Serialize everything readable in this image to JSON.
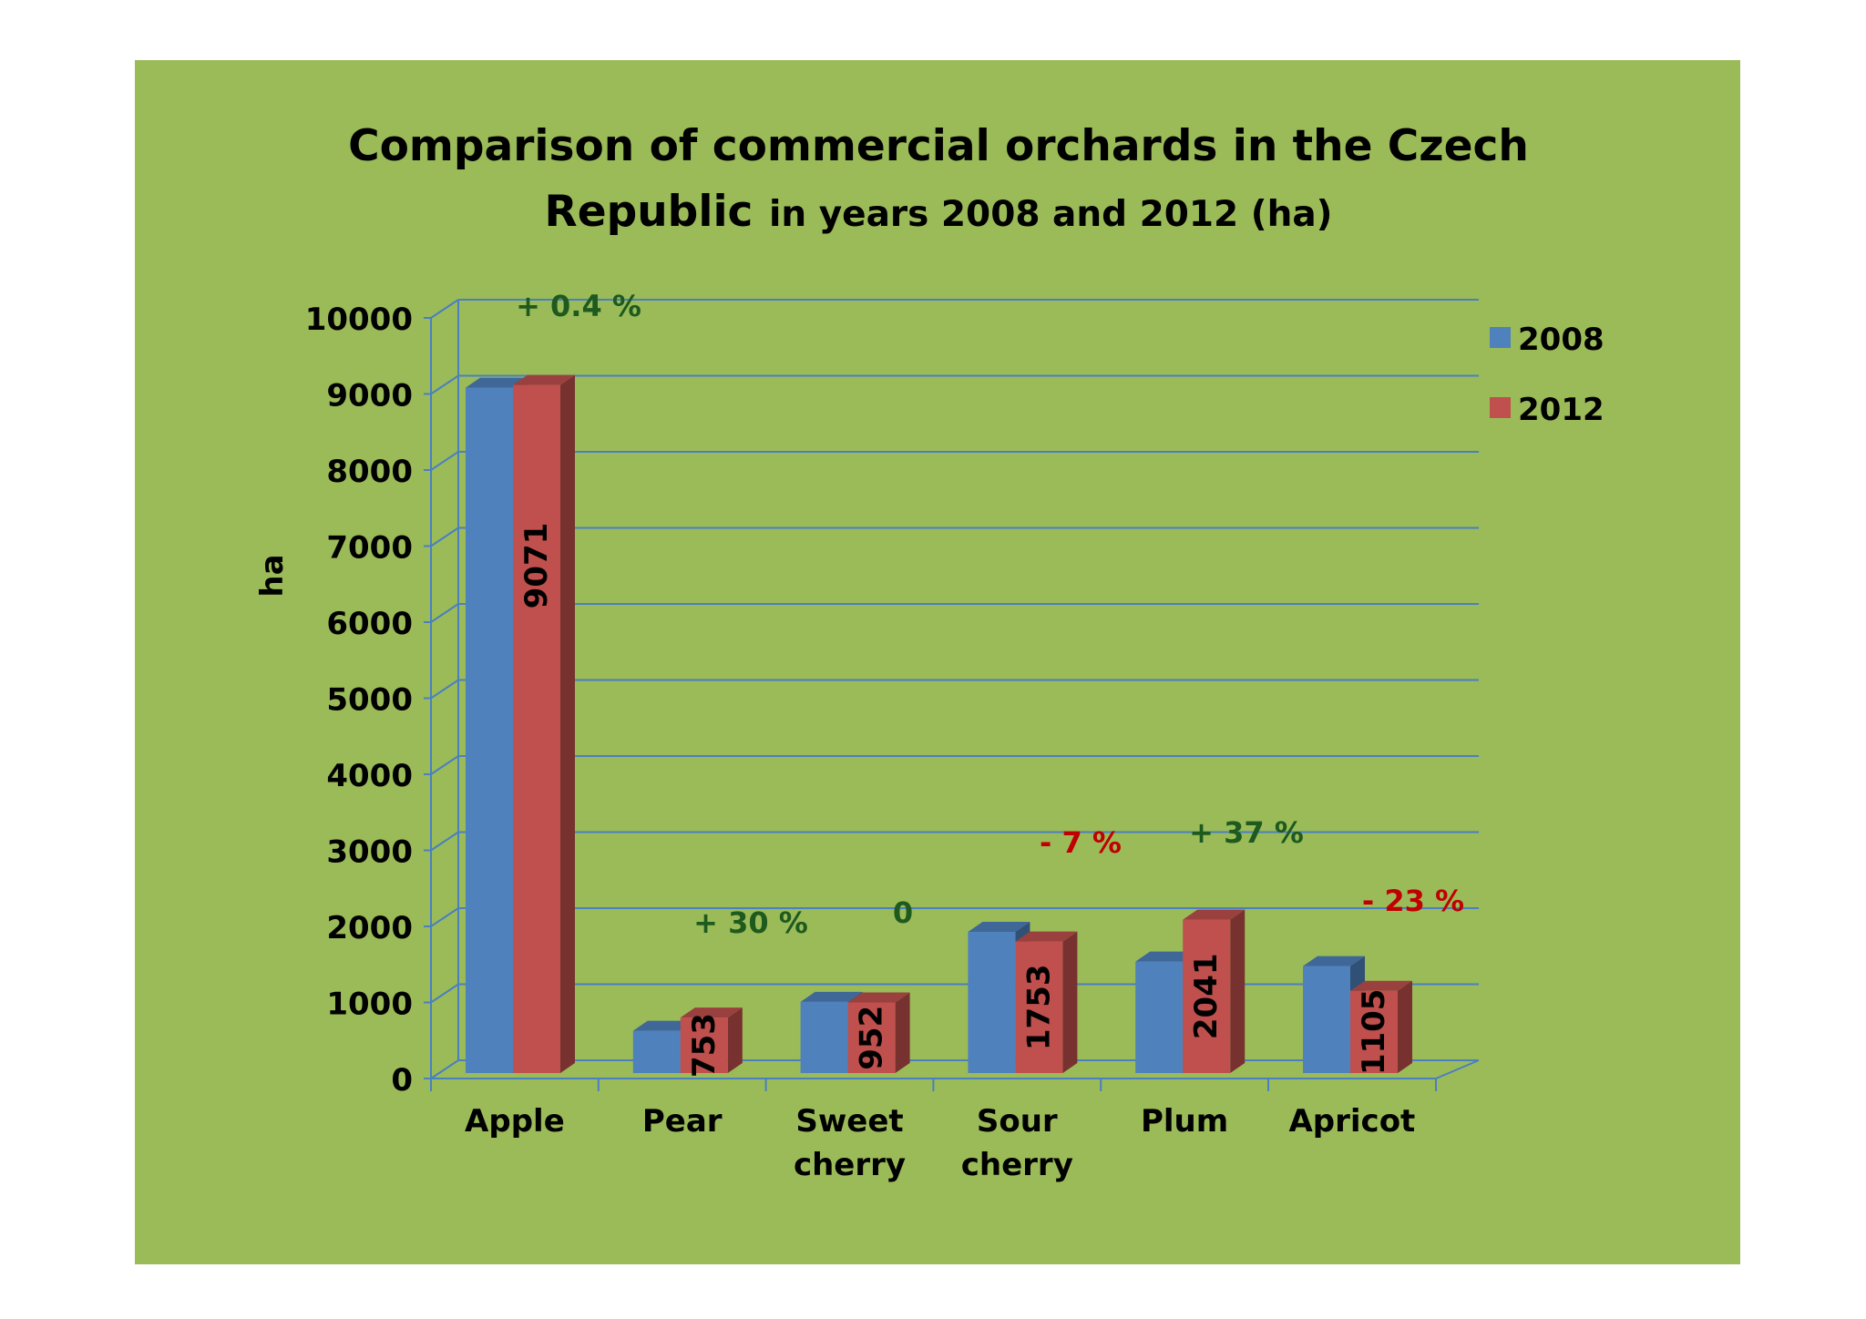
{
  "chart_data": {
    "type": "bar",
    "title_bold": "Comparison of commercial orchards in the Czech",
    "title_line2_bold": "Republic",
    "title_line2_rest": "in years 2008 and 2012 (ha)",
    "ylabel": "ha",
    "ylim": [
      0,
      10000
    ],
    "ytick_step": 1000,
    "yticks": [
      "0",
      "1000",
      "2000",
      "3000",
      "4000",
      "5000",
      "6000",
      "7000",
      "8000",
      "9000",
      "10000"
    ],
    "categories": [
      "Apple",
      "Pear",
      "Sweet cherry",
      "Sour cherry",
      "Plum",
      "Apricot"
    ],
    "category_lines": [
      [
        "Apple"
      ],
      [
        "Pear"
      ],
      [
        "Sweet",
        "cherry"
      ],
      [
        "Sour",
        "cherry"
      ],
      [
        "Plum"
      ],
      [
        "Apricot"
      ]
    ],
    "series": [
      {
        "name": "2008",
        "color": "#4f81bd",
        "values": [
          9035,
          580,
          960,
          1880,
          1490,
          1430
        ]
      },
      {
        "name": "2012",
        "color": "#c0504d",
        "values": [
          9071,
          753,
          952,
          1753,
          2041,
          1105
        ]
      }
    ],
    "data_labels_2012": [
      "9071",
      "753",
      "952",
      "1753",
      "2041",
      "1105"
    ],
    "changes": [
      {
        "text": "+ 0.4 %",
        "color": "#1e5a1e"
      },
      {
        "text": "+ 30 %",
        "color": "#1e5a1e"
      },
      {
        "text": "0",
        "color": "#1e5a1e"
      },
      {
        "text": "- 7 %",
        "color": "#c00000"
      },
      {
        "text": "+ 37 %",
        "color": "#1e5a1e"
      },
      {
        "text": "- 23 %",
        "color": "#c00000"
      }
    ],
    "legend": [
      "2008",
      "2012"
    ],
    "legend_position": "right",
    "grid": true
  }
}
